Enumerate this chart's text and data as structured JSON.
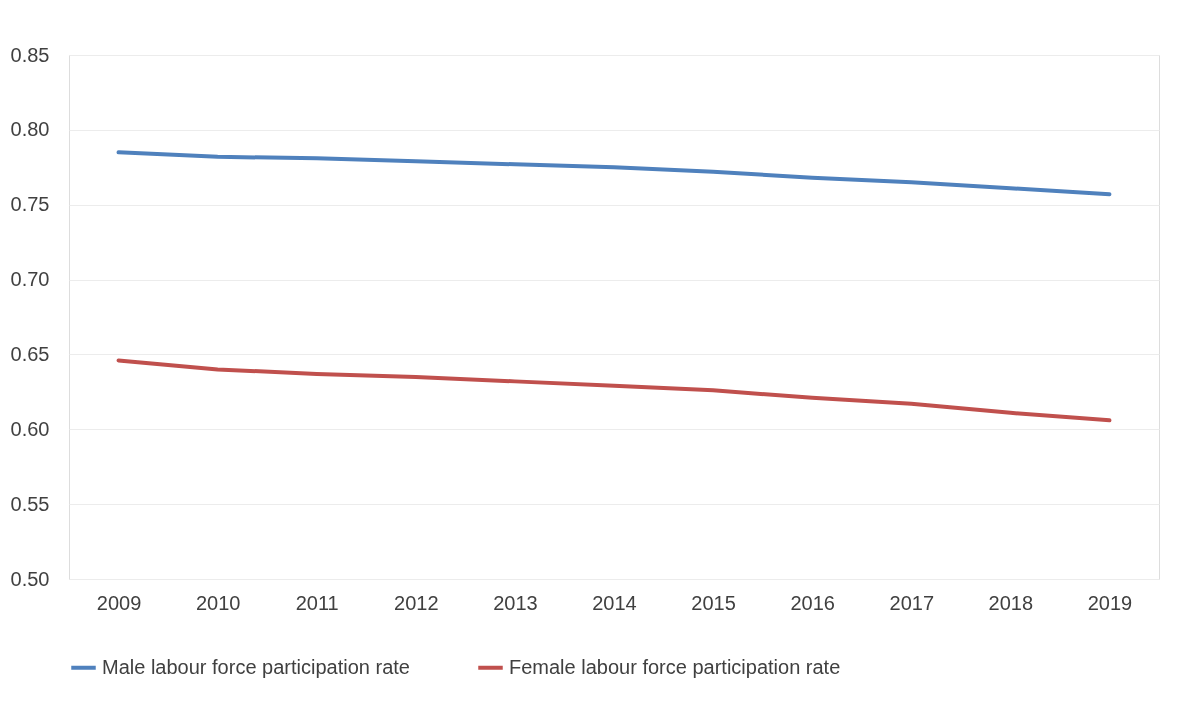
{
  "chart_data": {
    "type": "line",
    "categories": [
      "2009",
      "2010",
      "2011",
      "2012",
      "2013",
      "2014",
      "2015",
      "2016",
      "2017",
      "2018",
      "2019"
    ],
    "series": [
      {
        "name": "Male labour force participation rate",
        "color": "#4f81bd",
        "values": [
          0.785,
          0.782,
          0.781,
          0.779,
          0.777,
          0.775,
          0.772,
          0.768,
          0.765,
          0.761,
          0.757
        ]
      },
      {
        "name": "Female labour force participation rate",
        "color": "#c0504d",
        "values": [
          0.646,
          0.64,
          0.637,
          0.635,
          0.632,
          0.629,
          0.626,
          0.621,
          0.617,
          0.611,
          0.606
        ]
      }
    ],
    "ylim": [
      0.5,
      0.85
    ],
    "yticks": [
      {
        "value": 0.5,
        "label": "0.50"
      },
      {
        "value": 0.55,
        "label": "0.55"
      },
      {
        "value": 0.6,
        "label": "0.60"
      },
      {
        "value": 0.65,
        "label": "0.65"
      },
      {
        "value": 0.7,
        "label": "0.70"
      },
      {
        "value": 0.75,
        "label": "0.75"
      },
      {
        "value": 0.8,
        "label": "0.80"
      },
      {
        "value": 0.85,
        "label": "0.85"
      }
    ],
    "grid": "y",
    "legend": "bottom",
    "marker": "none",
    "line_style": "solid"
  }
}
